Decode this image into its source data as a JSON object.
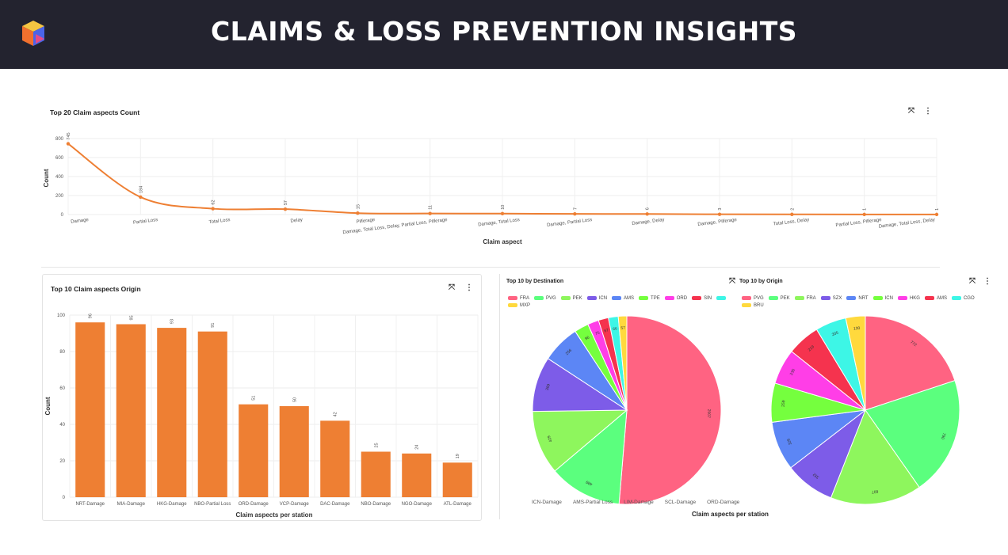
{
  "header": {
    "title": "CLAIMS & LOSS PREVENTION INSIGHTS"
  },
  "colors": {
    "header_bg": "#23232f",
    "accent": "#ee7f33"
  },
  "icons": {
    "logo": "cube-logo-icon",
    "expand": "expand-icon",
    "menu": "more-vertical-icon"
  },
  "line_panel": {
    "title": "Top 20 Claim aspects Count",
    "chart_data": {
      "type": "line",
      "categories": [
        "Damage",
        "Partial Loss",
        "Total Loss",
        "Delay",
        "Pilferage",
        "Damage, Total Loss, Delay, Partial Loss, Pilferage",
        "Damage, Total Loss",
        "Damage, Partial Loss",
        "Damage, Delay",
        "Damage, Pilferage",
        "Total Loss, Delay",
        "Partial Loss, Pilferage",
        "Damage, Total Loss, Delay"
      ],
      "values": [
        745,
        184,
        62,
        57,
        15,
        11,
        10,
        7,
        6,
        3,
        2,
        1,
        1
      ],
      "xlabel": "Claim aspect",
      "ylabel": "Count",
      "ylim": [
        0,
        800
      ],
      "yticks": [
        0,
        200,
        400,
        600,
        800
      ]
    }
  },
  "bar_panel": {
    "title": "Top 10 Claim aspects Origin",
    "chart_data": {
      "type": "bar",
      "categories": [
        "NRT-Damage",
        "MIA-Damage",
        "HKG-Damage",
        "NBO-Partial Loss",
        "ORD-Damage",
        "VCP-Damage",
        "DAC-Damage",
        "NBO-Damage",
        "NGO-Damage",
        "ATL-Damage"
      ],
      "values": [
        96,
        95,
        93,
        91,
        51,
        50,
        42,
        25,
        24,
        19
      ],
      "xlabel": "Claim aspects per station",
      "ylabel": "Count",
      "ylim": [
        0,
        100
      ],
      "yticks": [
        0,
        20,
        40,
        60,
        80,
        100
      ]
    }
  },
  "pie_panel": {
    "title_left": "Top 10  by Destination",
    "title_right": "Top 10  by Origin",
    "xlabel": "Claim aspects per station",
    "bottom_categories": [
      "ICN-Damage",
      "AMS-Partial Loss",
      "LIM-Damage",
      "SCL-Damage",
      "ORD-Damage"
    ],
    "chart_data": [
      {
        "type": "pie",
        "labels": [
          "FRA",
          "PVG",
          "PEK",
          "ICN",
          "AMS",
          "TPE",
          "ORD",
          "SIN",
          "",
          "MXP"
        ],
        "values": [
          2007,
          489,
          429,
          369,
          256,
          96,
          75,
          67,
          66,
          57
        ],
        "colors": [
          "#ff6382",
          "#5bff7e",
          "#8ef65d",
          "#7d5ce8",
          "#5c86f5",
          "#75ff3e",
          "#ff3ee7",
          "#f5334e",
          "#3df6e6",
          "#ffd93d"
        ]
      },
      {
        "type": "pie",
        "labels": [
          "PVG",
          "PEK",
          "FRA",
          "SZX",
          "NRT",
          "ICN",
          "HKG",
          "AMS",
          "CGO",
          "BRU"
        ],
        "values": [
          772,
          790,
          607,
          332,
          326,
          259,
          236,
          219,
          205,
          130
        ],
        "colors": [
          "#ff6382",
          "#5bff7e",
          "#8ef65d",
          "#7d5ce8",
          "#5c86f5",
          "#75ff3e",
          "#ff3ee7",
          "#f5334e",
          "#3df6e6",
          "#ffd93d"
        ]
      }
    ]
  }
}
